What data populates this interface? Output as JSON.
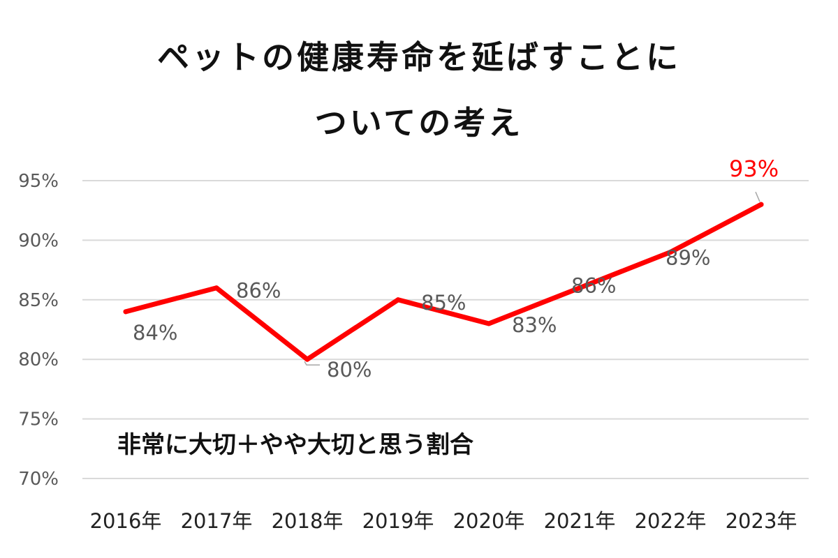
{
  "title_line1": "ペットの健康寿命を延ばすことに",
  "title_line2": "ついての考え",
  "chart_data": {
    "type": "line",
    "title": "ペットの健康寿命を延ばすことについての考え",
    "categories": [
      "2016年",
      "2017年",
      "2018年",
      "2019年",
      "2020年",
      "2021年",
      "2022年",
      "2023年"
    ],
    "series": [
      {
        "values": [
          84,
          86,
          80,
          85,
          83,
          86,
          89,
          93
        ],
        "labels": [
          "84%",
          "86%",
          "80%",
          "85%",
          "83%",
          "86%",
          "89%",
          "93%"
        ],
        "color": "#ff0000"
      }
    ],
    "ylim": [
      70,
      95
    ],
    "yticks": [
      "70%",
      "75%",
      "80%",
      "85%",
      "90%",
      "95%"
    ],
    "ytick_values": [
      70,
      75,
      80,
      85,
      90,
      95
    ],
    "grid": true,
    "highlight_color": "#ff0000",
    "annotation": "非常に大切＋やや大切と思う割合"
  }
}
